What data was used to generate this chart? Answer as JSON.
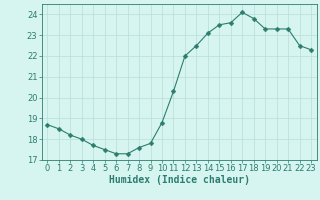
{
  "x": [
    0,
    1,
    2,
    3,
    4,
    5,
    6,
    7,
    8,
    9,
    10,
    11,
    12,
    13,
    14,
    15,
    16,
    17,
    18,
    19,
    20,
    21,
    22,
    23
  ],
  "y": [
    18.7,
    18.5,
    18.2,
    18.0,
    17.7,
    17.5,
    17.3,
    17.3,
    17.6,
    17.8,
    18.8,
    20.3,
    22.0,
    22.5,
    23.1,
    23.5,
    23.6,
    24.1,
    23.8,
    23.3,
    23.3,
    23.3,
    22.5,
    22.3
  ],
  "line_color": "#2d7d6f",
  "marker": "D",
  "marker_size": 2.5,
  "bg_color": "#d6f5f0",
  "grid_color": "#b8ddd8",
  "xlabel": "Humidex (Indice chaleur)",
  "xlim": [
    -0.5,
    23.5
  ],
  "ylim": [
    17,
    24.5
  ],
  "yticks": [
    17,
    18,
    19,
    20,
    21,
    22,
    23,
    24
  ],
  "xticks": [
    0,
    1,
    2,
    3,
    4,
    5,
    6,
    7,
    8,
    9,
    10,
    11,
    12,
    13,
    14,
    15,
    16,
    17,
    18,
    19,
    20,
    21,
    22,
    23
  ],
  "axis_color": "#2d7d6f",
  "tick_color": "#2d7d6f",
  "label_fontsize": 7,
  "tick_fontsize": 6
}
